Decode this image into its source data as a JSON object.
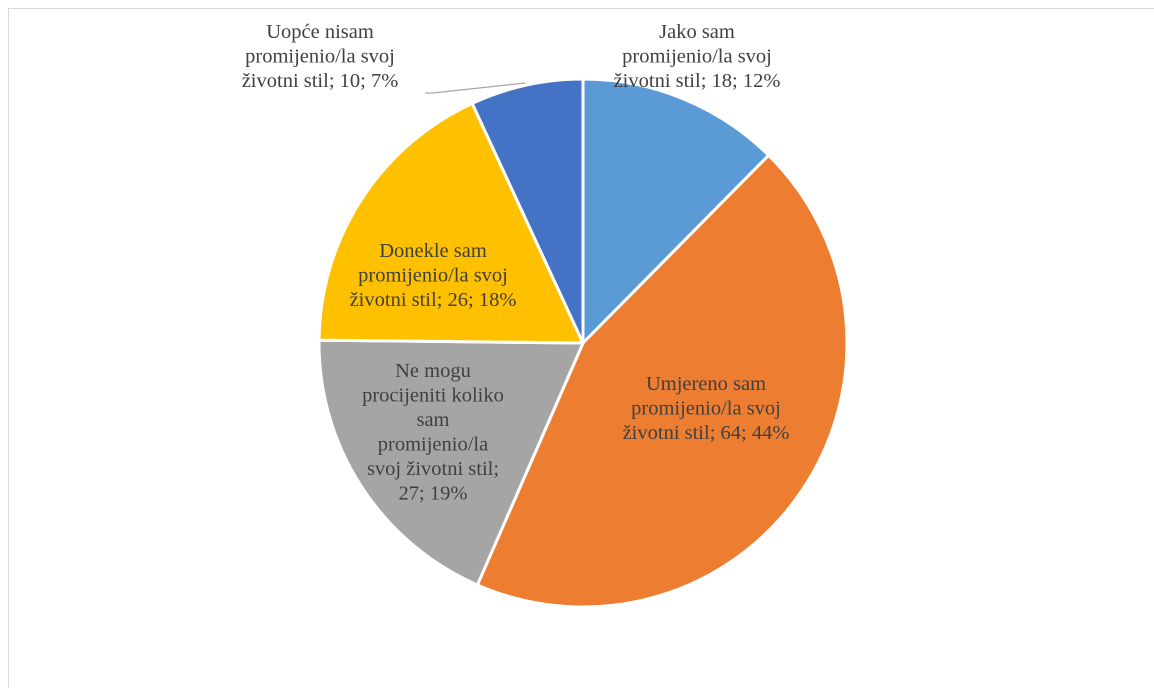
{
  "chart_data": {
    "type": "pie",
    "slices": [
      {
        "category": "Jako sam promijenio/la svoj životni stil",
        "value": 18,
        "percent": "12%",
        "color": "#5B9BD5",
        "label_lines": [
          "Jako sam",
          "promijenio/la svoj",
          "životni stil; 18; 12%"
        ]
      },
      {
        "category": "Umjereno sam promijenio/la svoj životni stil",
        "value": 64,
        "percent": "44%",
        "color": "#ED7D31",
        "label_lines": [
          "Umjereno sam",
          "promijenio/la svoj",
          "životni stil; 64; 44%"
        ]
      },
      {
        "category": "Ne mogu procijeniti koliko sam promijenio/la svoj životni stil",
        "value": 27,
        "percent": "19%",
        "color": "#A5A5A5",
        "label_lines": [
          "Ne mogu",
          "procijeniti koliko",
          "sam",
          "promijenio/la",
          "svoj životni stil;",
          "27; 19%"
        ]
      },
      {
        "category": "Donekle sam promijenio/la svoj životni stil",
        "value": 26,
        "percent": "18%",
        "color": "#FFC000",
        "label_lines": [
          "Donekle sam",
          "promijenio/la svoj",
          "životni stil; 26; 18%"
        ]
      },
      {
        "category": "Uopće nisam promijenio/la svoj životni stil",
        "value": 10,
        "percent": "7%",
        "color": "#4472C4",
        "label_lines": [
          "Uopće nisam",
          "promijenio/la svoj",
          "životni stil; 10; 7%"
        ]
      }
    ],
    "start_angle": "12 o'clock",
    "direction": "clockwise",
    "legend": "none",
    "label_color": "#404040",
    "slice_border_color": "#ffffff",
    "frame_color": "#d9d9d9",
    "leader_line_color": "#a6a6a6"
  }
}
